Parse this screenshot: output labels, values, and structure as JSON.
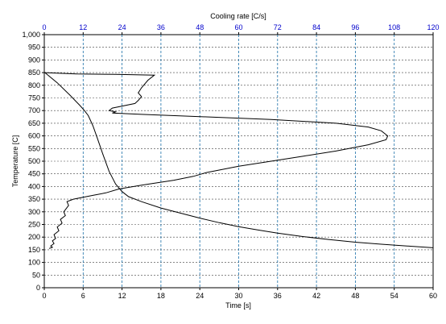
{
  "chart_data": {
    "type": "line",
    "xlabel": "Time [s]",
    "x2label": "Cooling rate [C/s]",
    "ylabel": "Temperature [C]",
    "xlim": [
      0,
      60
    ],
    "x2lim": [
      0,
      120
    ],
    "ylim": [
      0,
      1000
    ],
    "x_ticks": [
      0,
      6,
      12,
      18,
      24,
      30,
      36,
      42,
      48,
      54,
      60
    ],
    "x2_ticks": [
      0,
      12,
      24,
      36,
      48,
      60,
      72,
      84,
      96,
      108,
      120
    ],
    "y_ticks": [
      0,
      50,
      100,
      150,
      200,
      250,
      300,
      350,
      400,
      450,
      500,
      550,
      600,
      650,
      700,
      750,
      800,
      850,
      900,
      950,
      1000
    ],
    "y_tick_labels": [
      "0",
      "50",
      "100",
      "150",
      "200",
      "250",
      "300",
      "350",
      "400",
      "450",
      "500",
      "550",
      "600",
      "650",
      "700",
      "750",
      "800",
      "850",
      "900",
      "950",
      "1,000"
    ],
    "grid": true,
    "colors": {
      "x2_axis": "#0000cc",
      "vgrid": "#1a6fa8",
      "hgrid": "#000000",
      "curve": "#000000"
    },
    "series": [
      {
        "axis": "time",
        "x": [
          0.1,
          2,
          4,
          5.5,
          6.2,
          6.8,
          7.5,
          8.2,
          9,
          10,
          11,
          12,
          13,
          15,
          18,
          21,
          24,
          27,
          30,
          33,
          36,
          40,
          44,
          48,
          52,
          56,
          60
        ],
        "y": [
          850,
          810,
          760,
          720,
          700,
          680,
          640,
          590,
          530,
          460,
          410,
          380,
          360,
          340,
          315,
          295,
          275,
          257,
          241,
          228,
          216,
          202,
          190,
          180,
          172,
          165,
          158
        ]
      },
      {
        "axis": "cooling_rate",
        "x": [
          0,
          10,
          22,
          34,
          32,
          31,
          30,
          29,
          30,
          29,
          28,
          21,
          20,
          22,
          21,
          30,
          50,
          70,
          90,
          100,
          104,
          106,
          105.5,
          100,
          90,
          80,
          70,
          60,
          50,
          46,
          40,
          30,
          23,
          19,
          15,
          9,
          7,
          7.5,
          6,
          6.5,
          5,
          5.5,
          4,
          4.5,
          3,
          3.5,
          2.5,
          3,
          2,
          2.5,
          1.5
        ],
        "y": [
          850,
          845,
          843,
          840,
          820,
          805,
          790,
          770,
          755,
          740,
          728,
          710,
          700,
          695,
          690,
          685,
          675,
          665,
          650,
          635,
          620,
          600,
          585,
          565,
          540,
          520,
          500,
          480,
          455,
          440,
          425,
          405,
          390,
          375,
          365,
          350,
          340,
          325,
          300,
          285,
          270,
          255,
          240,
          225,
          210,
          195,
          185,
          175,
          165,
          160,
          155
        ]
      }
    ]
  }
}
